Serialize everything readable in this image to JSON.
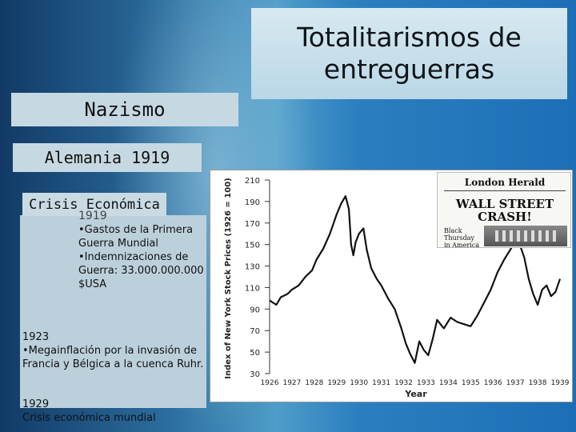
{
  "slide": {
    "title": "Totalitarismos de\nentreguerras",
    "topic": "Nazismo",
    "subtopic": "Alemania 1919",
    "section_label": "Crisis Económica",
    "year_1919": "1919",
    "causes_1919": "•Gastos de la Primera Guerra Mundial •Indemnizaciones de Guerra: 33.000.000.000 $USA",
    "year_1923": "1923",
    "desc_1923": "•Megainflación por la invasión de Francia y Bélgica a la cuenca Ruhr.",
    "year_1929": "1929",
    "desc_1929": "Crisis económica mundial"
  },
  "newspaper": {
    "masthead": "London Herald",
    "headline": "WALL STREET\nCRASH!",
    "subhead": "Black\nThursday\nin America"
  },
  "chart_data": {
    "type": "line",
    "xlabel": "Year",
    "ylabel": "Index of New York Stock Prices (1926 = 100)",
    "x_ticks": [
      "1926",
      "1927",
      "1928",
      "1929",
      "1930",
      "1931",
      "1932",
      "1933",
      "1934",
      "1935",
      "1936",
      "1937",
      "1938",
      "1939"
    ],
    "y_ticks": [
      30,
      50,
      70,
      90,
      110,
      130,
      150,
      170,
      190,
      210
    ],
    "ylim": [
      30,
      210
    ],
    "xlim": [
      1926,
      1939
    ],
    "series": [
      {
        "x": [
          1926.0,
          1926.3,
          1926.5,
          1926.8,
          1927.0,
          1927.3,
          1927.6,
          1927.9,
          1928.1,
          1928.4,
          1928.7,
          1929.0,
          1929.2,
          1929.4,
          1929.55,
          1929.65,
          1929.75,
          1929.85,
          1930.0,
          1930.2,
          1930.35,
          1930.55,
          1930.8,
          1931.0,
          1931.3,
          1931.6,
          1931.9,
          1932.1,
          1932.3,
          1932.5,
          1932.7,
          1932.9,
          1933.1,
          1933.3,
          1933.5,
          1933.8,
          1934.1,
          1934.4,
          1934.7,
          1935.0,
          1935.3,
          1935.6,
          1935.9,
          1936.2,
          1936.5,
          1936.8,
          1937.0,
          1937.2,
          1937.4,
          1937.6,
          1937.8,
          1938.0,
          1938.2,
          1938.4,
          1938.6,
          1938.8,
          1939.0
        ],
        "y": [
          98,
          94,
          101,
          104,
          108,
          112,
          120,
          126,
          136,
          146,
          160,
          178,
          188,
          195,
          183,
          150,
          140,
          152,
          160,
          165,
          145,
          128,
          118,
          112,
          100,
          90,
          72,
          58,
          48,
          40,
          60,
          52,
          47,
          62,
          80,
          72,
          82,
          78,
          76,
          74,
          84,
          96,
          108,
          124,
          136,
          146,
          154,
          150,
          138,
          118,
          104,
          94,
          108,
          112,
          102,
          106,
          118
        ]
      }
    ]
  }
}
